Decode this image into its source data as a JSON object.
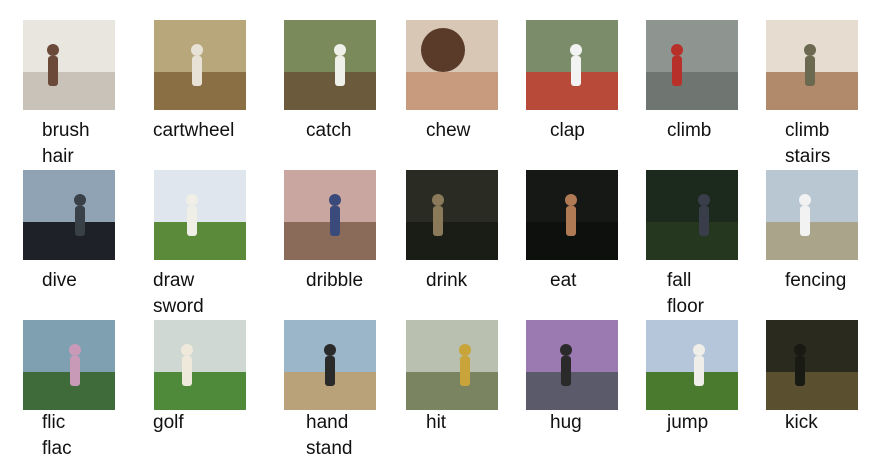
{
  "actions": [
    {
      "id": "brush-hair",
      "lines": [
        "brush",
        "hair"
      ],
      "icon": "person-thumbnail",
      "sky": "#e9e6df",
      "ground": "#c9c2b8",
      "figure": "#6b4a3a"
    },
    {
      "id": "cartwheel",
      "lines": [
        "cartwheel"
      ],
      "icon": "gym-thumbnail",
      "sky": "#b9a77c",
      "ground": "#8a6f45",
      "figure": "#e8e2d6"
    },
    {
      "id": "catch",
      "lines": [
        "catch"
      ],
      "icon": "gym-thumbnail",
      "sky": "#7a8a5a",
      "ground": "#6b5a3c",
      "figure": "#f0f0ea"
    },
    {
      "id": "chew",
      "lines": [
        "chew"
      ],
      "icon": "face-thumbnail",
      "sky": "#d9c7b5",
      "ground": "#c89a7e",
      "figure": "#5a3b2a"
    },
    {
      "id": "clap",
      "lines": [
        "clap"
      ],
      "icon": "people-thumbnail",
      "sky": "#7a8c6a",
      "ground": "#b84a3a",
      "figure": "#f2f2f2"
    },
    {
      "id": "climb",
      "lines": [
        "climb"
      ],
      "icon": "rock-thumbnail",
      "sky": "#8e9490",
      "ground": "#6f7571",
      "figure": "#b8302a"
    },
    {
      "id": "climb-stairs",
      "lines": [
        "climb",
        "stairs"
      ],
      "icon": "stairs-thumbnail",
      "sky": "#e6ddd0",
      "ground": "#b08a6a",
      "figure": "#6b6a50"
    },
    {
      "id": "dive",
      "lines": [
        "dive"
      ],
      "icon": "crowd-thumbnail",
      "sky": "#8fa3b5",
      "ground": "#1e2228",
      "figure": "#3a4048"
    },
    {
      "id": "draw-sword",
      "lines": [
        "draw",
        "sword"
      ],
      "icon": "field-thumbnail",
      "sky": "#dfe6ee",
      "ground": "#5a8a3a",
      "figure": "#efefe8"
    },
    {
      "id": "dribble",
      "lines": [
        "dribble"
      ],
      "icon": "gym-thumbnail",
      "sky": "#c9a6a0",
      "ground": "#8a6a58",
      "figure": "#3a4a7a"
    },
    {
      "id": "drink",
      "lines": [
        "drink"
      ],
      "icon": "dark-thumbnail",
      "sky": "#2a2c24",
      "ground": "#1a1c16",
      "figure": "#8a7a5a"
    },
    {
      "id": "eat",
      "lines": [
        "eat"
      ],
      "icon": "dark-thumbnail",
      "sky": "#161816",
      "ground": "#0e100e",
      "figure": "#b07a55"
    },
    {
      "id": "fall-floor",
      "lines": [
        "fall",
        "floor"
      ],
      "icon": "dark-thumbnail",
      "sky": "#1c2a1e",
      "ground": "#25381f",
      "figure": "#3a3e4a"
    },
    {
      "id": "fencing",
      "lines": [
        "fencing"
      ],
      "icon": "field-thumbnail",
      "sky": "#b9c7d2",
      "ground": "#a9a48a",
      "figure": "#f2f2f2"
    },
    {
      "id": "flic-flac",
      "lines": [
        "flic",
        "flac"
      ],
      "icon": "field-thumbnail",
      "sky": "#7fa0b0",
      "ground": "#3f6a3a",
      "figure": "#c89ab8"
    },
    {
      "id": "golf",
      "lines": [
        "golf"
      ],
      "icon": "field-thumbnail",
      "sky": "#cfd8d2",
      "ground": "#4f8a3a",
      "figure": "#efe9dc"
    },
    {
      "id": "hand-stand",
      "lines": [
        "hand",
        "stand"
      ],
      "icon": "beach-thumbnail",
      "sky": "#9ab6c8",
      "ground": "#b9a27a",
      "figure": "#2a2a2a"
    },
    {
      "id": "hit",
      "lines": [
        "hit"
      ],
      "icon": "blur-thumbnail",
      "sky": "#b9c0b0",
      "ground": "#7a8460",
      "figure": "#c9a43a"
    },
    {
      "id": "hug",
      "lines": [
        "hug"
      ],
      "icon": "crowd-thumbnail",
      "sky": "#9a7ab0",
      "ground": "#5a5a6a",
      "figure": "#2a2a2a"
    },
    {
      "id": "jump",
      "lines": [
        "jump"
      ],
      "icon": "field-thumbnail",
      "sky": "#b6c6da",
      "ground": "#4a7a2e",
      "figure": "#f0eee8"
    },
    {
      "id": "kick",
      "lines": [
        "kick"
      ],
      "icon": "dark-thumbnail",
      "sky": "#2a2a1e",
      "ground": "#5a5030",
      "figure": "#1a1a14"
    }
  ]
}
